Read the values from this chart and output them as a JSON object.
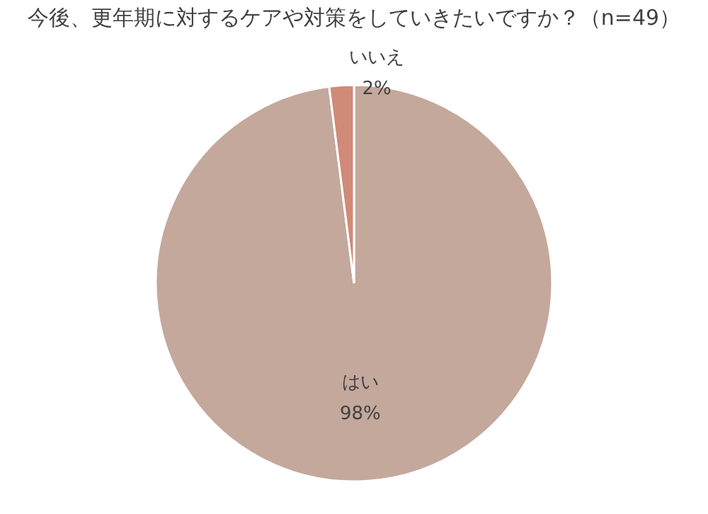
{
  "chart_data": {
    "type": "pie",
    "title": "今後、更年期に対するケアや対策をしていきたいですか？（n=49）",
    "categories": [
      "はい",
      "いいえ"
    ],
    "values": [
      98,
      2
    ],
    "colors": [
      "#c4a89c",
      "#d08a78"
    ],
    "value_labels": [
      "98%",
      "2%"
    ],
    "legend": false
  }
}
